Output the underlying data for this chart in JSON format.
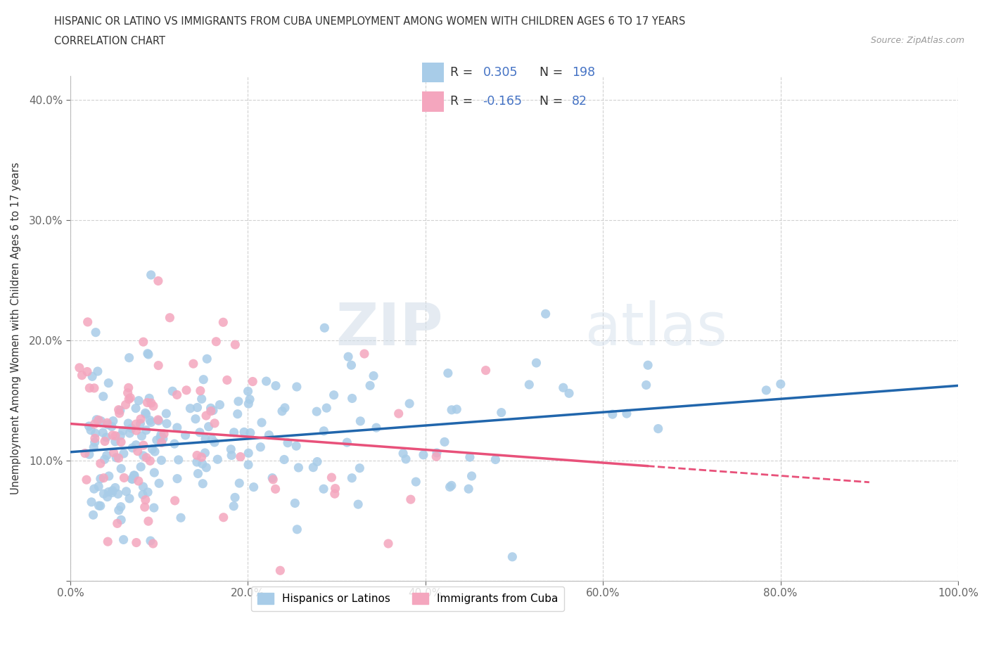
{
  "title_line1": "HISPANIC OR LATINO VS IMMIGRANTS FROM CUBA UNEMPLOYMENT AMONG WOMEN WITH CHILDREN AGES 6 TO 17 YEARS",
  "title_line2": "CORRELATION CHART",
  "source_text": "Source: ZipAtlas.com",
  "ylabel": "Unemployment Among Women with Children Ages 6 to 17 years",
  "xlim": [
    0,
    1.0
  ],
  "ylim": [
    0,
    0.42
  ],
  "xticks": [
    0.0,
    0.2,
    0.4,
    0.6,
    0.8,
    1.0
  ],
  "xtick_labels": [
    "0.0%",
    "20.0%",
    "40.0%",
    "60.0%",
    "80.0%",
    "100.0%"
  ],
  "yticks": [
    0.0,
    0.1,
    0.2,
    0.3,
    0.4
  ],
  "ytick_labels": [
    "",
    "10.0%",
    "20.0%",
    "30.0%",
    "40.0%"
  ],
  "blue_color": "#a8cce8",
  "pink_color": "#f4a6be",
  "blue_line_color": "#2166ac",
  "pink_line_color": "#e8517a",
  "R_blue": 0.305,
  "N_blue": 198,
  "R_pink": -0.165,
  "N_pink": 82,
  "watermark_zip": "ZIP",
  "watermark_atlas": "atlas",
  "background_color": "#ffffff",
  "grid_color": "#cccccc",
  "legend_color": "#4472C4",
  "legend_label_blue": "Hispanics or Latinos",
  "legend_label_pink": "Immigrants from Cuba"
}
